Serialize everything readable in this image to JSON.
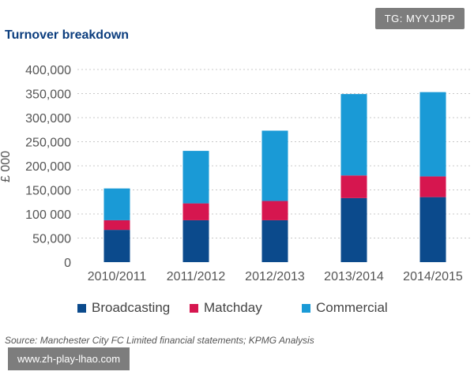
{
  "header": {
    "title": "Turnover breakdown",
    "tag": "TG: MYYJJPP"
  },
  "footer": {
    "source": "Source: Manchester City FC Limited financial statements; KPMG Analysis",
    "site": "www.zh-play-lhao.com"
  },
  "colors": {
    "broadcasting": "#0b4a8c",
    "matchday": "#d6164f",
    "commercial": "#1a9ad6",
    "grid": "#c8c8c8",
    "axis_text": "#555555"
  },
  "chart_data": {
    "type": "bar",
    "stacked": true,
    "ylabel": "£ 000",
    "xlabel": "",
    "ylim": [
      0,
      400000
    ],
    "yticks": [
      0,
      50000,
      100000,
      150000,
      200000,
      250000,
      300000,
      350000,
      400000
    ],
    "ytick_labels": [
      "0",
      "50,000",
      "100 000",
      "150,000",
      "200,000",
      "250,000",
      "300,000",
      "350,000",
      "400,000"
    ],
    "grid": true,
    "legend_position": "bottom",
    "categories": [
      "2010/2011",
      "2011/2012",
      "2012/2013",
      "2013/2014",
      "2014/2015"
    ],
    "series": [
      {
        "name": "Broadcasting",
        "color_key": "broadcasting",
        "values": [
          67000,
          87000,
          87000,
          133000,
          135000
        ]
      },
      {
        "name": "Matchday",
        "color_key": "matchday",
        "values": [
          20000,
          35000,
          40000,
          47000,
          43000
        ]
      },
      {
        "name": "Commercial",
        "color_key": "commercial",
        "values": [
          66000,
          109000,
          146000,
          169000,
          175000
        ]
      }
    ]
  }
}
